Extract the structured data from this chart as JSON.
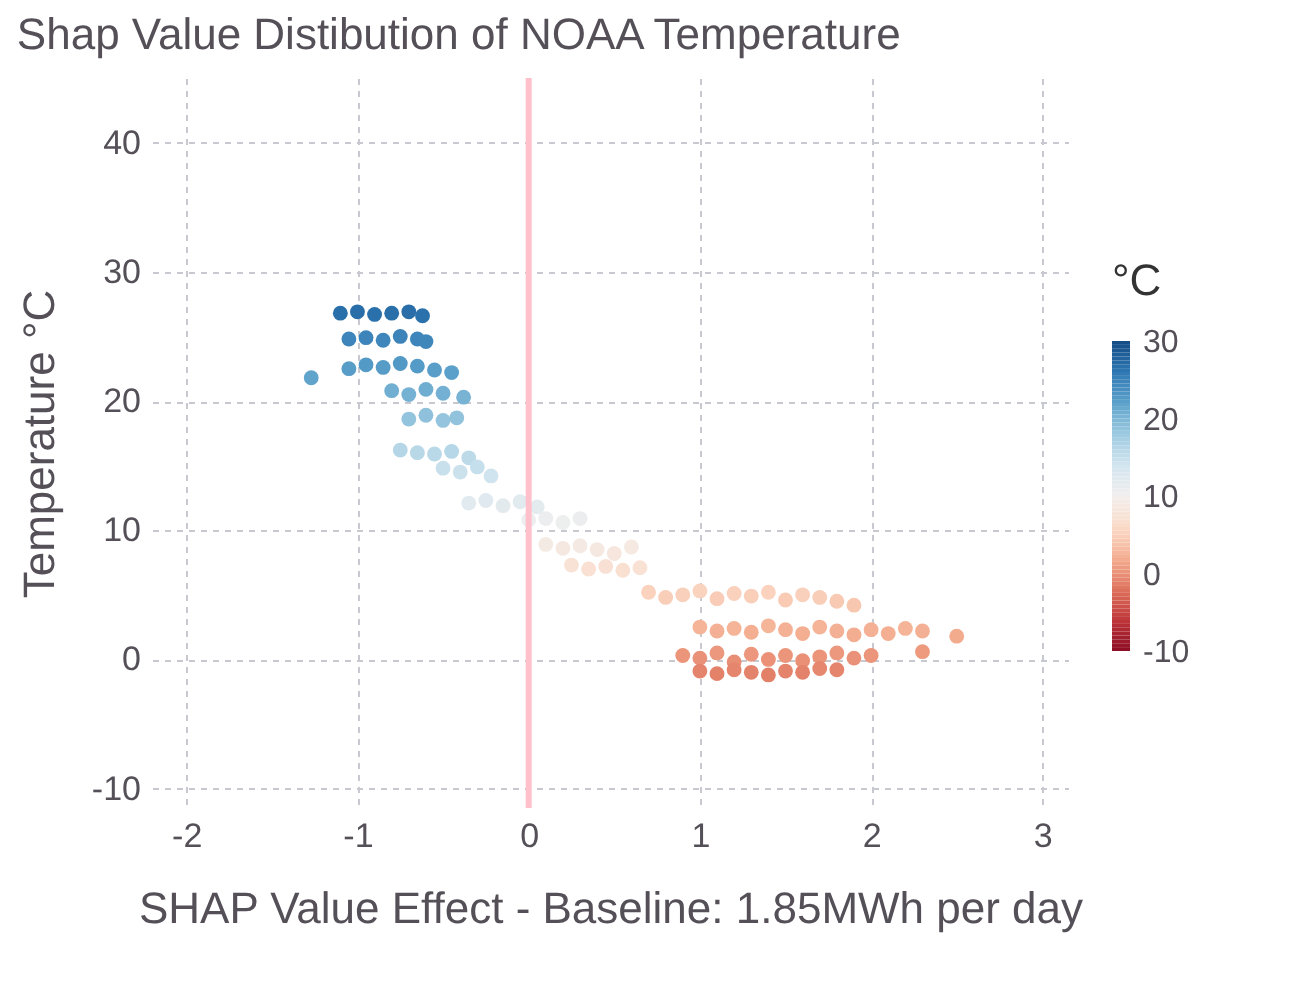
{
  "chart_data": {
    "type": "scatter",
    "title": "Shap Value Distibution of NOAA Temperature",
    "xlabel": "SHAP Value Effect - Baseline: 1.85MWh per day",
    "ylabel": "Temperature °C",
    "clabel": "°C",
    "x": [
      -1.1,
      -1.0,
      -0.9,
      -0.8,
      -0.7,
      -0.62,
      -1.05,
      -0.95,
      -0.85,
      -0.75,
      -0.65,
      -0.6,
      -1.05,
      -0.95,
      -0.85,
      -0.75,
      -0.65,
      -0.55,
      -0.45,
      -1.27,
      -0.8,
      -0.7,
      -0.6,
      -0.5,
      -0.38,
      -0.7,
      -0.6,
      -0.5,
      -0.42,
      -0.75,
      -0.65,
      -0.55,
      -0.45,
      -0.35,
      -0.5,
      -0.4,
      -0.3,
      -0.22,
      -0.35,
      -0.25,
      -0.15,
      -0.05,
      0.05,
      0.0,
      0.1,
      0.2,
      0.3,
      0.1,
      0.2,
      0.3,
      0.4,
      0.5,
      0.6,
      0.25,
      0.35,
      0.45,
      0.55,
      0.65,
      0.7,
      0.8,
      0.9,
      1.0,
      1.1,
      1.2,
      1.3,
      1.4,
      1.5,
      1.6,
      1.7,
      1.8,
      1.9,
      1.0,
      1.1,
      1.2,
      1.3,
      1.4,
      1.5,
      1.6,
      1.7,
      1.8,
      1.9,
      2.0,
      2.1,
      2.2,
      2.3,
      2.5,
      0.9,
      1.0,
      1.1,
      1.2,
      1.3,
      1.4,
      1.5,
      1.6,
      1.7,
      1.8,
      1.9,
      2.0,
      2.3,
      1.0,
      1.1,
      1.2,
      1.3,
      1.4,
      1.5,
      1.6,
      1.7,
      1.8
    ],
    "values": [
      26.8,
      26.9,
      26.7,
      26.8,
      26.9,
      26.6,
      24.8,
      24.9,
      24.7,
      25.0,
      24.8,
      24.6,
      22.5,
      22.8,
      22.6,
      22.9,
      22.7,
      22.4,
      22.2,
      21.8,
      20.8,
      20.5,
      20.9,
      20.6,
      20.3,
      18.6,
      18.9,
      18.5,
      18.7,
      16.2,
      16.0,
      15.9,
      16.1,
      15.6,
      14.8,
      14.5,
      14.9,
      14.2,
      12.1,
      12.3,
      11.9,
      12.2,
      11.8,
      10.8,
      10.9,
      10.6,
      10.9,
      8.9,
      8.6,
      8.8,
      8.5,
      8.2,
      8.7,
      7.3,
      7.0,
      7.2,
      6.9,
      7.1,
      5.2,
      4.8,
      5.0,
      5.3,
      4.7,
      5.1,
      4.9,
      5.2,
      4.6,
      5.0,
      4.8,
      4.5,
      4.2,
      2.5,
      2.2,
      2.4,
      2.1,
      2.6,
      2.3,
      2.0,
      2.5,
      2.2,
      1.9,
      2.3,
      2.0,
      2.4,
      2.2,
      1.8,
      0.3,
      0.1,
      0.5,
      -0.2,
      0.4,
      0.0,
      0.3,
      -0.1,
      0.2,
      0.5,
      0.1,
      0.3,
      0.6,
      -0.9,
      -1.1,
      -0.8,
      -1.0,
      -1.2,
      -0.9,
      -1.0,
      -0.7,
      -0.8
    ],
    "cvalues": [
      26.8,
      26.9,
      26.7,
      26.8,
      26.9,
      26.6,
      24.8,
      24.9,
      24.7,
      25.0,
      24.8,
      24.6,
      22.5,
      22.8,
      22.6,
      22.9,
      22.7,
      22.4,
      22.2,
      21.8,
      20.8,
      20.5,
      20.9,
      20.6,
      20.3,
      18.6,
      18.9,
      18.5,
      18.7,
      16.2,
      16.0,
      15.9,
      16.1,
      15.6,
      14.8,
      14.5,
      14.9,
      14.2,
      12.1,
      12.3,
      11.9,
      12.2,
      11.8,
      10.8,
      10.9,
      10.6,
      10.9,
      8.9,
      8.6,
      8.8,
      8.5,
      8.2,
      8.7,
      7.3,
      7.0,
      7.2,
      6.9,
      7.1,
      5.2,
      4.8,
      5.0,
      5.3,
      4.7,
      5.1,
      4.9,
      5.2,
      4.6,
      5.0,
      4.8,
      4.5,
      4.2,
      2.5,
      2.2,
      2.4,
      2.1,
      2.6,
      2.3,
      2.0,
      2.5,
      2.2,
      1.9,
      2.3,
      2.0,
      2.4,
      2.2,
      1.8,
      0.3,
      0.1,
      0.5,
      -0.2,
      0.4,
      0.0,
      0.3,
      -0.1,
      0.2,
      0.5,
      0.1,
      0.3,
      0.6,
      -0.9,
      -1.1,
      -0.8,
      -1.0,
      -1.2,
      -0.9,
      -1.0,
      -0.7,
      -0.8
    ],
    "xlim": [
      -2.2,
      3.15
    ],
    "xticks": [
      -2,
      -1,
      0,
      1,
      2,
      3
    ],
    "ylim": [
      -11.5,
      45
    ],
    "yticks": [
      -10,
      0,
      10,
      20,
      30,
      40
    ],
    "clim": [
      -10,
      30
    ],
    "cticks": [
      -10,
      0,
      10,
      20,
      30
    ],
    "grid": true,
    "ref_lines": [
      {
        "axis": "x",
        "value": 0,
        "color": "#ffc0cb"
      }
    ]
  }
}
